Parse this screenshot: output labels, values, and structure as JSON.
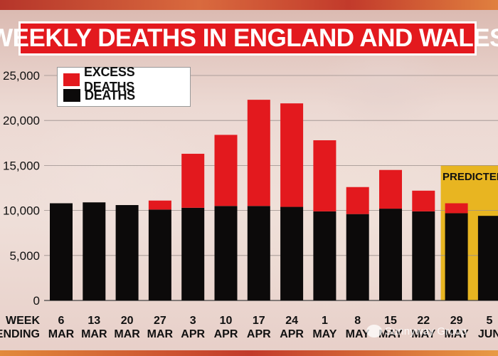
{
  "title": "WEEKLY DEATHS IN ENGLAND AND WALES",
  "legend": [
    {
      "label": "EXCESS DEATHS",
      "color": "#e3191e"
    },
    {
      "label": "DEATHS",
      "color": "#0c0a0a"
    }
  ],
  "predicted_label": "PREDICTED",
  "watermark": "Sunnyway Group",
  "colors": {
    "excess": "#e3191e",
    "deaths": "#0c0a0a",
    "predicted_band": "#e8b521",
    "title_bg": "#e3191e"
  },
  "chart_data": {
    "type": "bar",
    "stacked": true,
    "title": "WEEKLY DEATHS IN ENGLAND AND WALES",
    "xlabel_lines": [
      "WEEK",
      "ENDING"
    ],
    "categories": [
      [
        "6",
        "MAR"
      ],
      [
        "13",
        "MAR"
      ],
      [
        "20",
        "MAR"
      ],
      [
        "27",
        "MAR"
      ],
      [
        "3",
        "APR"
      ],
      [
        "10",
        "APR"
      ],
      [
        "17",
        "APR"
      ],
      [
        "24",
        "APR"
      ],
      [
        "1",
        "MAY"
      ],
      [
        "8",
        "MAY"
      ],
      [
        "15",
        "MAY"
      ],
      [
        "22",
        "MAY"
      ],
      [
        "29",
        "MAY"
      ],
      [
        "5",
        "JUN"
      ]
    ],
    "series": [
      {
        "name": "DEATHS",
        "values": [
          10800,
          10900,
          10600,
          10100,
          10300,
          10500,
          10500,
          10400,
          9900,
          9600,
          10200,
          9900,
          9700,
          9400
        ]
      },
      {
        "name": "EXCESS DEATHS",
        "values": [
          0,
          0,
          0,
          1000,
          6000,
          7900,
          11800,
          11500,
          7900,
          3000,
          4300,
          2300,
          1100,
          0
        ]
      }
    ],
    "predicted_categories": [
      "29 MAY",
      "5 JUN"
    ],
    "yticks": [
      "0",
      "5,000",
      "10,000",
      "15,000",
      "20,000",
      "25,000"
    ],
    "ylim": [
      0,
      25000
    ],
    "grid": true,
    "legend_position": "top-left"
  }
}
